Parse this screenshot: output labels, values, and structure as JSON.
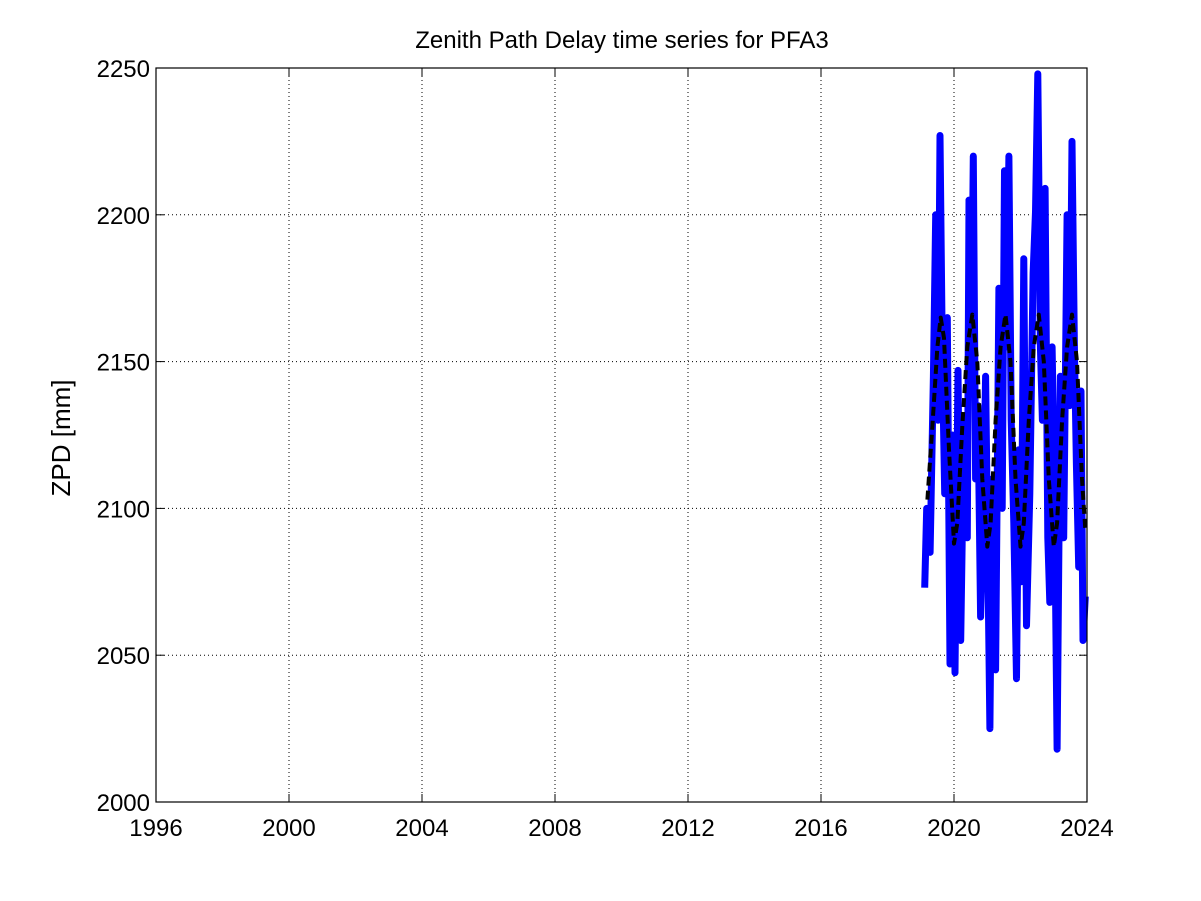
{
  "chart_data": {
    "type": "line",
    "title": "Zenith Path Delay time series for PFA3",
    "xlabel": "",
    "ylabel": "ZPD [mm]",
    "xlim": [
      1996,
      2024
    ],
    "ylim": [
      2000,
      2250
    ],
    "xticks": [
      1996,
      2000,
      2004,
      2008,
      2012,
      2016,
      2020,
      2024
    ],
    "yticks": [
      2000,
      2050,
      2100,
      2150,
      2200,
      2250
    ],
    "xtick_labels": [
      "1996",
      "2000",
      "2004",
      "2008",
      "2012",
      "2016",
      "2020",
      "2024"
    ],
    "ytick_labels": [
      "2000",
      "2050",
      "2100",
      "2150",
      "2200",
      "2250"
    ],
    "grid": true,
    "legend": "none",
    "series": [
      {
        "style": "solid",
        "color": "#0000ff",
        "x": [
          2019.12,
          2019.18,
          2019.28,
          2019.38,
          2019.45,
          2019.52,
          2019.58,
          2019.65,
          2019.72,
          2019.8,
          2019.88,
          2019.95,
          2020.03,
          2020.12,
          2020.2,
          2020.3,
          2020.4,
          2020.45,
          2020.52,
          2020.58,
          2020.65,
          2020.72,
          2020.8,
          2020.88,
          2020.95,
          2021.02,
          2021.08,
          2021.15,
          2021.25,
          2021.35,
          2021.45,
          2021.52,
          2021.58,
          2021.65,
          2021.72,
          2021.8,
          2021.88,
          2021.95,
          2022.02,
          2022.1,
          2022.18,
          2022.28,
          2022.38,
          2022.45,
          2022.52,
          2022.6,
          2022.66,
          2022.74,
          2022.82,
          2022.88,
          2022.95,
          2023.02,
          2023.1,
          2023.2,
          2023.3,
          2023.4,
          2023.48,
          2023.55,
          2023.62,
          2023.68,
          2023.75,
          2023.82,
          2023.88,
          2023.95
        ],
        "y": [
          2073,
          2100,
          2085,
          2145,
          2200,
          2130,
          2227,
          2150,
          2105,
          2165,
          2047,
          2125,
          2044,
          2147,
          2055,
          2130,
          2090,
          2205,
          2150,
          2220,
          2110,
          2135,
          2063,
          2100,
          2145,
          2081,
          2025,
          2110,
          2045,
          2175,
          2100,
          2215,
          2155,
          2220,
          2130,
          2095,
          2042,
          2120,
          2075,
          2185,
          2060,
          2105,
          2180,
          2201,
          2248,
          2155,
          2130,
          2209,
          2090,
          2068,
          2155,
          2110,
          2018,
          2145,
          2090,
          2200,
          2135,
          2225,
          2155,
          2115,
          2080,
          2140,
          2055,
          2070
        ]
      },
      {
        "style": "dashed",
        "color": "#000000",
        "x": [
          2019.2,
          2019.35,
          2019.5,
          2019.6,
          2019.7,
          2019.85,
          2020.0,
          2020.1,
          2020.25,
          2020.4,
          2020.55,
          2020.7,
          2020.85,
          2021.0,
          2021.1,
          2021.25,
          2021.4,
          2021.55,
          2021.7,
          2021.85,
          2022.0,
          2022.1,
          2022.25,
          2022.4,
          2022.55,
          2022.7,
          2022.85,
          2023.0,
          2023.1,
          2023.25,
          2023.4,
          2023.55,
          2023.7,
          2023.85,
          2023.95
        ],
        "y": [
          2103,
          2128,
          2155,
          2165,
          2158,
          2120,
          2088,
          2095,
          2128,
          2155,
          2166,
          2150,
          2110,
          2087,
          2095,
          2130,
          2155,
          2166,
          2150,
          2110,
          2087,
          2095,
          2130,
          2155,
          2166,
          2150,
          2110,
          2087,
          2095,
          2130,
          2155,
          2166,
          2150,
          2110,
          2093
        ]
      }
    ]
  }
}
